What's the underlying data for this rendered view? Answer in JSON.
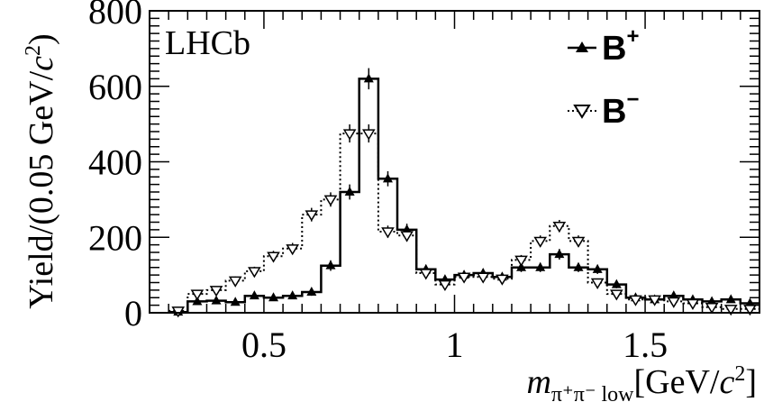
{
  "chart_data": {
    "type": "line",
    "experiment_label": "LHCb",
    "ylabel": {
      "base": "Yield/(0.05 GeV/",
      "c": "c",
      "exp": "2",
      "close": ")"
    },
    "xlabel": {
      "m": "m",
      "sub": "π⁺π⁻ low",
      "unit_open": "[GeV/",
      "c": "c",
      "exp": "2",
      "unit_close": "]"
    },
    "xlim": [
      0.2,
      1.8
    ],
    "ylim": [
      0,
      800
    ],
    "x_ticks": [
      0.5,
      1,
      1.5
    ],
    "x_tick_labels": [
      "0.5",
      "1",
      "1.5"
    ],
    "y_ticks": [
      0,
      200,
      400,
      600,
      800
    ],
    "y_tick_labels": [
      "0",
      "200",
      "400",
      "600",
      "800"
    ],
    "bin_edges": [
      0.25,
      0.3,
      0.35,
      0.4,
      0.45,
      0.5,
      0.55,
      0.6,
      0.65,
      0.7,
      0.75,
      0.8,
      0.85,
      0.9,
      0.95,
      1.0,
      1.05,
      1.1,
      1.15,
      1.2,
      1.25,
      1.3,
      1.35,
      1.4,
      1.45,
      1.5,
      1.55,
      1.6,
      1.65,
      1.7,
      1.75,
      1.8
    ],
    "legend_position": "top-right",
    "series": [
      {
        "name": "B",
        "charge": "+",
        "marker": "filled-triangle-up",
        "line_style": "solid",
        "color": "#000000",
        "values": [
          2,
          30,
          32,
          28,
          45,
          40,
          45,
          55,
          125,
          320,
          620,
          355,
          220,
          115,
          88,
          100,
          105,
          95,
          120,
          120,
          155,
          120,
          115,
          75,
          40,
          35,
          45,
          35,
          30,
          35,
          25
        ],
        "errors": [
          5,
          8,
          8,
          8,
          9,
          9,
          9,
          10,
          14,
          20,
          28,
          20,
          16,
          12,
          10,
          11,
          11,
          11,
          12,
          12,
          14,
          12,
          12,
          10,
          8,
          7,
          8,
          7,
          7,
          7,
          6
        ]
      },
      {
        "name": "B",
        "charge": "−",
        "marker": "open-triangle-down",
        "line_style": "dotted",
        "color": "#000000",
        "values": [
          5,
          50,
          60,
          85,
          110,
          150,
          170,
          260,
          300,
          475,
          475,
          215,
          205,
          105,
          75,
          95,
          95,
          90,
          140,
          190,
          230,
          190,
          80,
          50,
          35,
          35,
          30,
          25,
          15,
          10,
          10
        ],
        "errors": [
          5,
          9,
          10,
          11,
          12,
          14,
          15,
          18,
          19,
          24,
          24,
          16,
          16,
          12,
          10,
          11,
          11,
          11,
          13,
          15,
          16,
          15,
          10,
          8,
          7,
          7,
          6,
          6,
          5,
          4,
          4
        ]
      }
    ]
  }
}
